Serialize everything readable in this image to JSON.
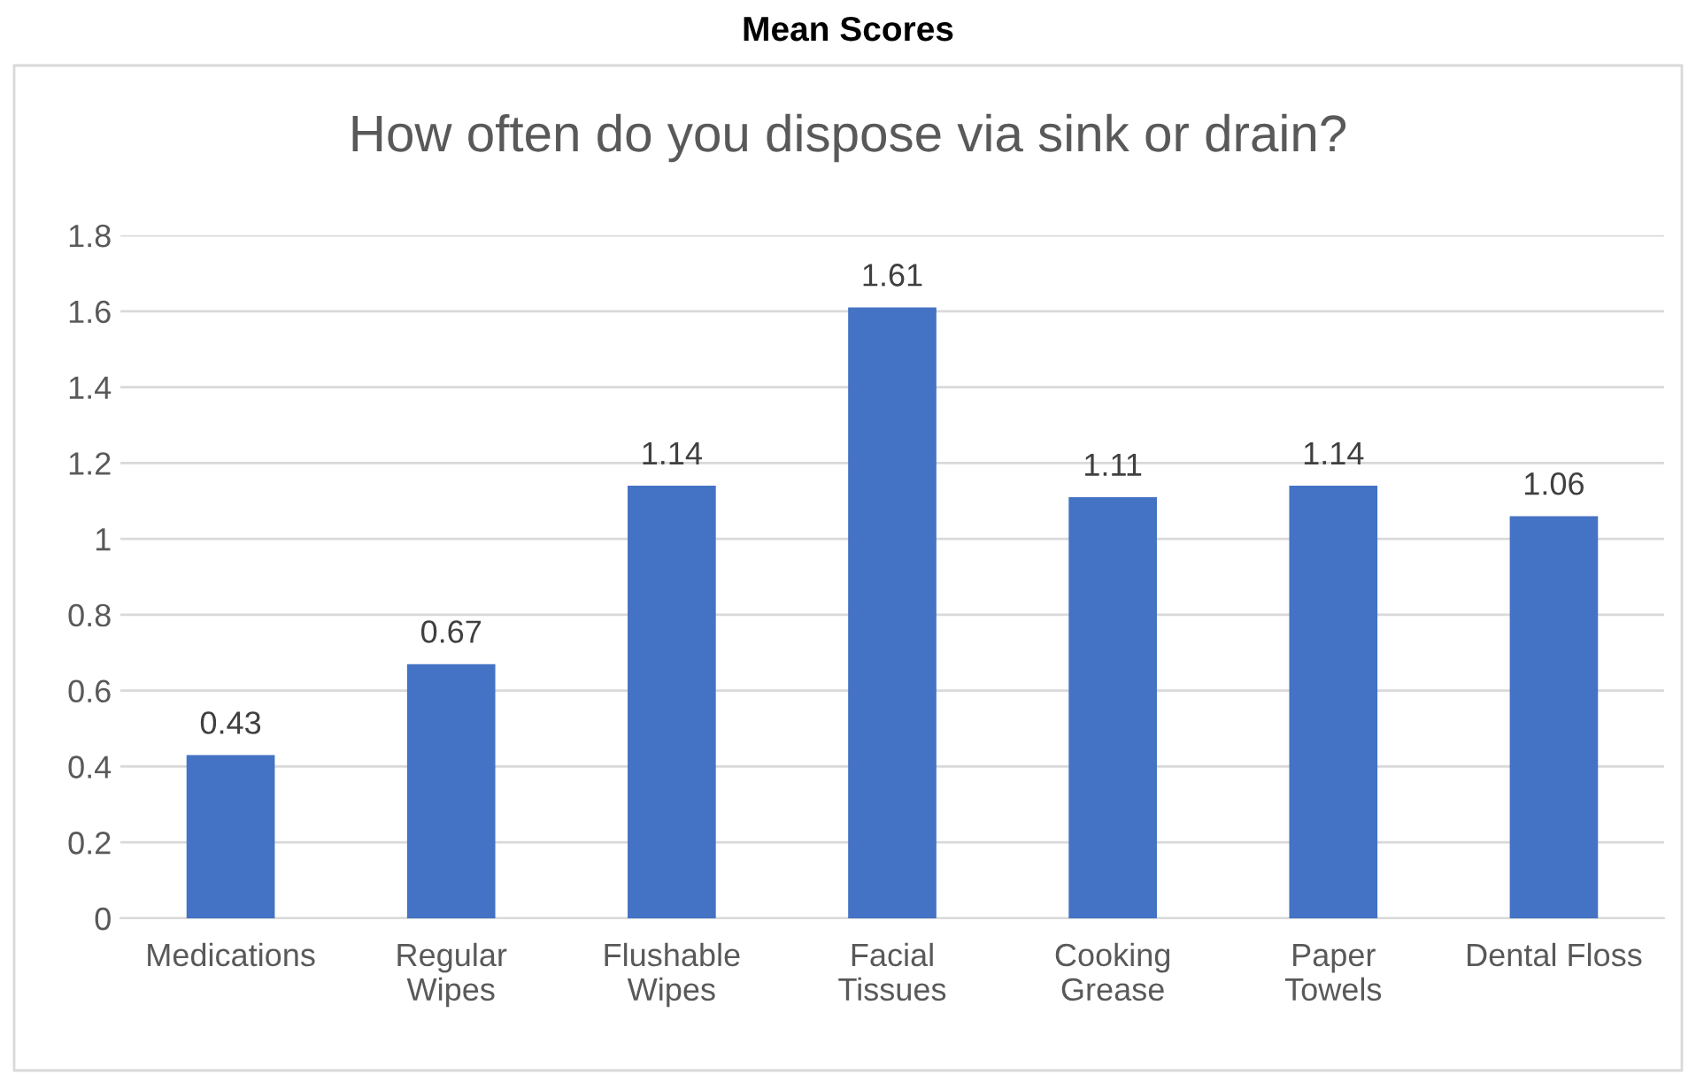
{
  "chart_data": {
    "type": "bar",
    "title": "Mean Scores",
    "subtitle": "How often do you dispose via sink or drain?",
    "categories": [
      "Medications",
      "Regular\nWipes",
      "Flushable\nWipes",
      "Facial\nTissues",
      "Cooking\nGrease",
      "Paper\nTowels",
      "Dental Floss"
    ],
    "values": [
      0.43,
      0.67,
      1.14,
      1.61,
      1.11,
      1.14,
      1.06
    ],
    "color": "#4472c4",
    "ylim": [
      0,
      1.8
    ],
    "yticks": [
      0,
      0.2,
      0.4,
      0.6,
      0.8,
      1,
      1.2,
      1.4,
      1.6,
      1.8
    ],
    "grid": "y",
    "data_labels": true
  }
}
